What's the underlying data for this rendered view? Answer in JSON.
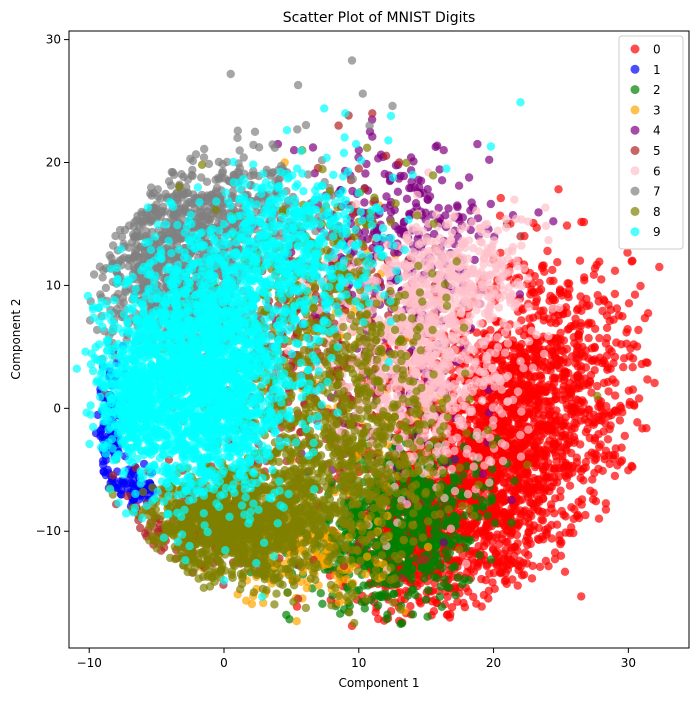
{
  "chart_data": {
    "type": "scatter",
    "title": "Scatter Plot of MNIST Digits",
    "xlabel": "Component 1",
    "ylabel": "Component 2",
    "xlim": [
      -11.5,
      34.5
    ],
    "ylim": [
      -19.5,
      30.7
    ],
    "xticks": [
      -10,
      0,
      10,
      20,
      30
    ],
    "yticks": [
      -10,
      0,
      10,
      20,
      30
    ],
    "grid": false,
    "legend_placement": "top-right",
    "marker_alpha": 0.7,
    "series": [
      {
        "name": "0",
        "color": "#ff0000",
        "clusters": [
          {
            "cx": 19.5,
            "cy": -4.0,
            "sx": 3.6,
            "sy": 5.5,
            "n": 1500
          },
          {
            "cx": 24.5,
            "cy": 2.0,
            "sx": 3.5,
            "sy": 5.5,
            "n": 700
          },
          {
            "cx": 14.5,
            "cy": -11.0,
            "sx": 3.0,
            "sy": 3.0,
            "n": 500
          }
        ],
        "outliers": [
          [
            32.3,
            11.5
          ],
          [
            30.3,
            12.0
          ],
          [
            29.0,
            9.3
          ],
          [
            31.0,
            3.6
          ],
          [
            30.8,
            0.8
          ],
          [
            29.5,
            -3.2
          ],
          [
            29.0,
            -5.5
          ],
          [
            26.5,
            -15.3
          ],
          [
            25.0,
            -12.0
          ],
          [
            25.3,
            -13.3
          ],
          [
            13.0,
            -17.3
          ],
          [
            9.5,
            -17.7
          ],
          [
            21.0,
            -12.8
          ],
          [
            26.0,
            -8.2
          ],
          [
            27.8,
            8.7
          ],
          [
            23.2,
            14.7
          ],
          [
            24.0,
            12.8
          ],
          [
            22.7,
            11.0
          ]
        ]
      },
      {
        "name": "1",
        "color": "#0000ff",
        "clusters": [
          {
            "cx": -8.4,
            "cy": -2.0,
            "sx": 0.5,
            "sy": 2.5,
            "n": 120
          },
          {
            "cx": -6.5,
            "cy": -6.5,
            "sx": 0.8,
            "sy": 0.8,
            "n": 60
          }
        ],
        "outliers": []
      },
      {
        "name": "2",
        "color": "#008000",
        "clusters": [
          {
            "cx": 12.0,
            "cy": -11.0,
            "sx": 3.0,
            "sy": 2.5,
            "n": 500
          },
          {
            "cx": 15.0,
            "cy": -6.5,
            "sx": 2.5,
            "sy": 2.5,
            "n": 200
          }
        ],
        "outliers": [
          [
            7.3,
            -15.9
          ],
          [
            8.3,
            -16.1
          ],
          [
            10.0,
            -14.8
          ],
          [
            19.2,
            -8.0
          ],
          [
            21.0,
            -4.5
          ]
        ]
      },
      {
        "name": "3",
        "color": "#ffa500",
        "clusters": [
          {
            "cx": 6.0,
            "cy": -12.0,
            "sx": 3.0,
            "sy": 2.0,
            "n": 150
          },
          {
            "cx": 10.0,
            "cy": 2.0,
            "sx": 3.0,
            "sy": 5.0,
            "n": 100
          }
        ],
        "outliers": [
          [
            13.4,
            -16.5
          ],
          [
            1.7,
            -14.0
          ],
          [
            4.5,
            20.0
          ],
          [
            11.5,
            16.5
          ]
        ]
      },
      {
        "name": "4",
        "color": "#800080",
        "clusters": [
          {
            "cx": 13.0,
            "cy": 14.0,
            "sx": 3.5,
            "sy": 3.5,
            "n": 250
          },
          {
            "cx": 12.0,
            "cy": 5.0,
            "sx": 4.0,
            "sy": 5.0,
            "n": 150
          }
        ],
        "outliers": [
          [
            18.8,
            21.5
          ],
          [
            16.3,
            21.0
          ],
          [
            11.0,
            22.1
          ],
          [
            10.0,
            21.0
          ],
          [
            5.2,
            21.0
          ],
          [
            4.0,
            21.5
          ],
          [
            14.5,
            17.5
          ],
          [
            17.3,
            16.5
          ],
          [
            16.3,
            -10.9
          ]
        ]
      },
      {
        "name": "5",
        "color": "#b22222",
        "clusters": [
          {
            "cx": 6.0,
            "cy": 4.0,
            "sx": 4.5,
            "sy": 6.0,
            "n": 400
          },
          {
            "cx": -2.0,
            "cy": -9.5,
            "sx": 2.5,
            "sy": 2.0,
            "n": 180
          }
        ],
        "outliers": [
          [
            11.0,
            24.0
          ],
          [
            8.5,
            23.0
          ],
          [
            10.0,
            19.5
          ],
          [
            5.5,
            -15.5
          ],
          [
            -8.0,
            -7.8
          ],
          [
            13.0,
            20.0
          ],
          [
            21.0,
            15.0
          ],
          [
            22.0,
            14.0
          ]
        ]
      },
      {
        "name": "6",
        "color": "#ffc0cb",
        "clusters": [
          {
            "cx": 14.5,
            "cy": 4.5,
            "sx": 3.5,
            "sy": 5.0,
            "n": 900
          },
          {
            "cx": 18.0,
            "cy": 11.0,
            "sx": 2.5,
            "sy": 2.5,
            "n": 200
          }
        ],
        "outliers": [
          [
            19.5,
            15.0
          ],
          [
            17.0,
            15.5
          ],
          [
            -6.0,
            -8.5
          ]
        ]
      },
      {
        "name": "7",
        "color": "#808080",
        "clusters": [
          {
            "cx": -3.5,
            "cy": 11.5,
            "sx": 2.8,
            "sy": 4.0,
            "n": 900
          },
          {
            "cx": 2.0,
            "cy": 16.5,
            "sx": 3.0,
            "sy": 2.5,
            "n": 250
          }
        ],
        "outliers": [
          [
            0.5,
            27.2
          ],
          [
            5.5,
            26.3
          ],
          [
            9.5,
            28.3
          ],
          [
            10.3,
            25.6
          ],
          [
            10.8,
            23.0
          ],
          [
            12.5,
            24.6
          ],
          [
            1.0,
            22.0
          ],
          [
            2.3,
            22.5
          ],
          [
            -2.5,
            20.3
          ],
          [
            -3.7,
            19.0
          ],
          [
            -5.2,
            17.5
          ],
          [
            -6.5,
            14.0
          ],
          [
            -7.5,
            9.0
          ]
        ]
      },
      {
        "name": "8",
        "color": "#808000",
        "clusters": [
          {
            "cx": 1.0,
            "cy": -9.5,
            "sx": 3.5,
            "sy": 2.2,
            "n": 1100
          },
          {
            "cx": 8.5,
            "cy": -4.0,
            "sx": 4.0,
            "sy": 5.0,
            "n": 800
          },
          {
            "cx": 8.0,
            "cy": 8.0,
            "sx": 4.0,
            "sy": 5.0,
            "n": 300
          }
        ],
        "outliers": [
          [
            27.7,
            1.0
          ],
          [
            22.5,
            -4.6
          ],
          [
            18.0,
            -2.0
          ],
          [
            16.5,
            9.0
          ],
          [
            -1.5,
            -14.6
          ],
          [
            9.3,
            -16.6
          ],
          [
            5.8,
            21.0
          ]
        ]
      },
      {
        "name": "9",
        "color": "#00ffff",
        "clusters": [
          {
            "cx": -1.5,
            "cy": 3.0,
            "sx": 3.3,
            "sy": 5.0,
            "n": 2200
          },
          {
            "cx": 5.0,
            "cy": 13.0,
            "sx": 3.5,
            "sy": 3.5,
            "n": 500
          },
          {
            "cx": -6.8,
            "cy": 0.0,
            "sx": 1.2,
            "sy": 2.5,
            "n": 300
          }
        ],
        "outliers": [
          [
            22.0,
            24.9
          ],
          [
            19.8,
            21.3
          ],
          [
            9.0,
            24.0
          ],
          [
            9.8,
            21.5
          ],
          [
            14.0,
            19.0
          ],
          [
            16.5,
            19.5
          ],
          [
            12.2,
            21.8
          ],
          [
            -3.5,
            -5.3
          ],
          [
            -8.8,
            -0.5
          ]
        ]
      }
    ]
  }
}
